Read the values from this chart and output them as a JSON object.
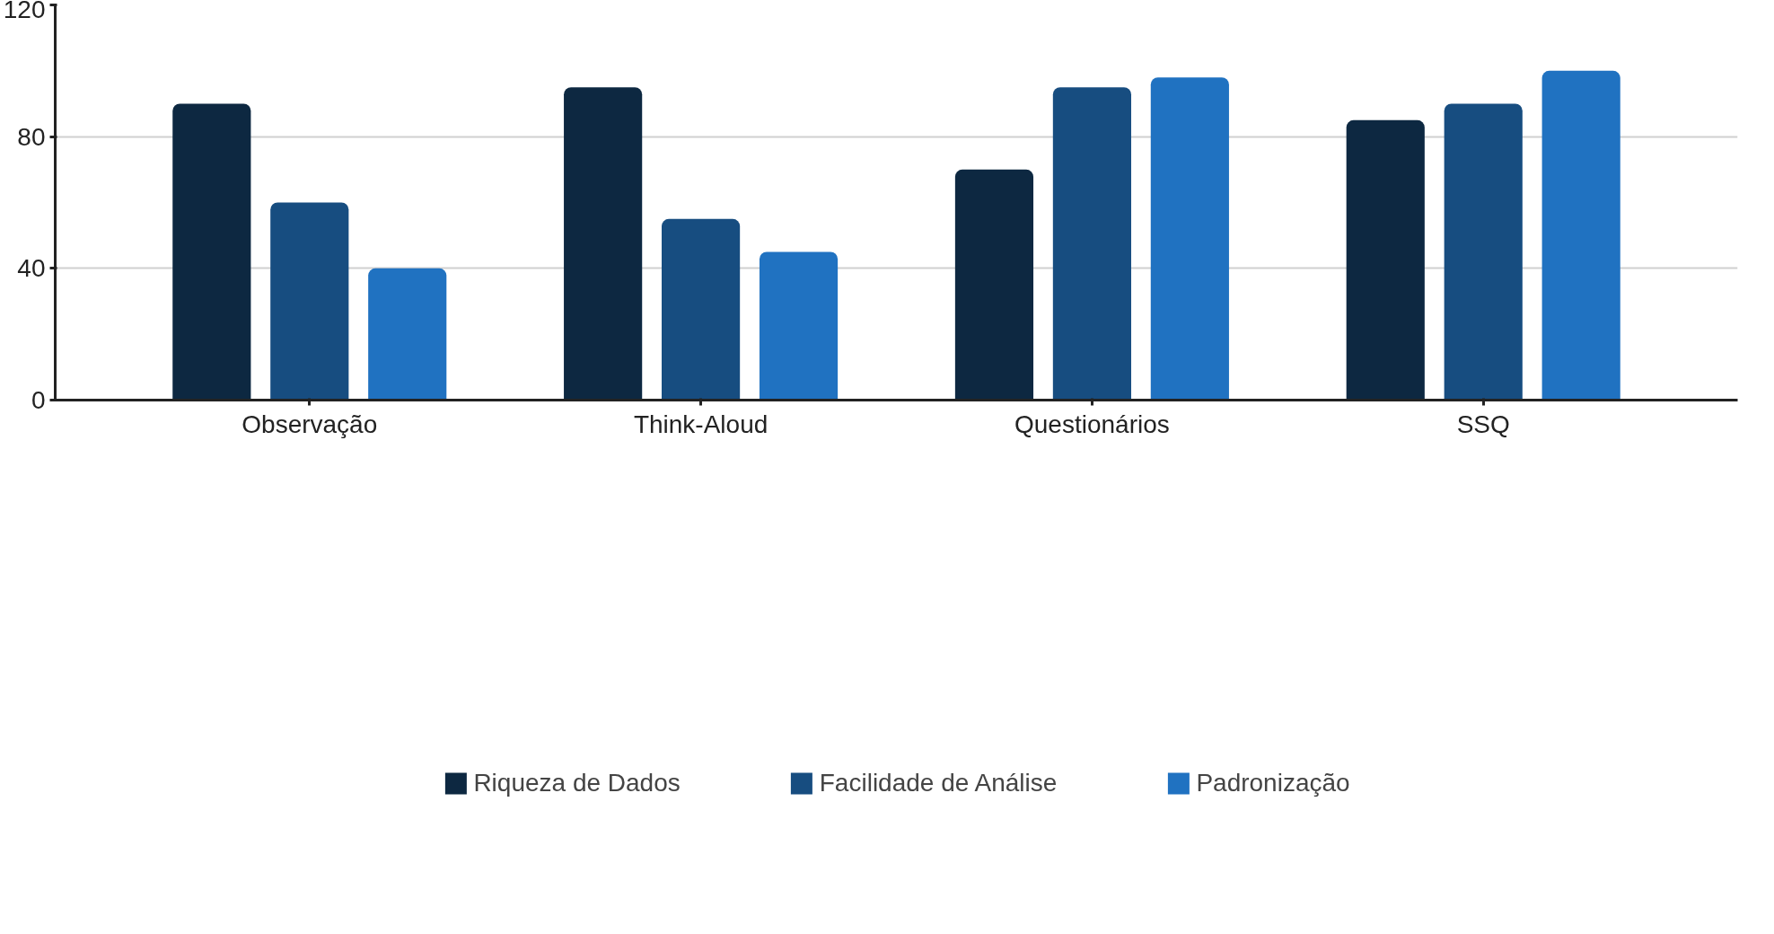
{
  "chart_data": {
    "type": "bar",
    "categories": [
      "Observação",
      "Think-Aloud",
      "Questionários",
      "SSQ"
    ],
    "series": [
      {
        "name": "Riqueza de Dados",
        "color": "#0d2841",
        "values": [
          90,
          95,
          70,
          85
        ]
      },
      {
        "name": "Facilidade de Análise",
        "color": "#174d80",
        "values": [
          60,
          55,
          95,
          90
        ]
      },
      {
        "name": "Padronização",
        "color": "#2072c1",
        "values": [
          40,
          45,
          98,
          100
        ]
      }
    ],
    "ylim": [
      0,
      120
    ],
    "yticks": [
      0,
      40,
      80,
      120
    ],
    "grid": "y",
    "legend": "bottom"
  }
}
